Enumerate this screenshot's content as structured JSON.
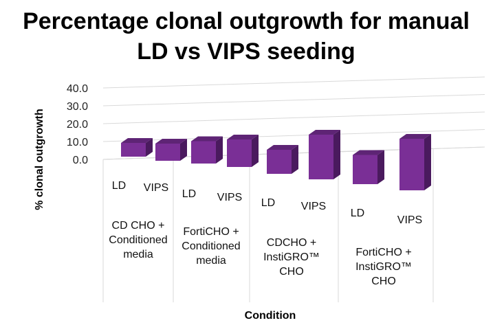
{
  "chart_data": {
    "type": "bar",
    "title": "Percentage clonal outgrowth for manual LD vs VIPS seeding",
    "title_lines": [
      "Percentage clonal outgrowth for manual",
      "LD vs VIPS seeding"
    ],
    "xlabel": "Condition",
    "ylabel": "% clonal outgrowth",
    "ylim": [
      0,
      40
    ],
    "yticks": [
      "40.0",
      "30.0",
      "20.0",
      "10.0",
      "0.0"
    ],
    "grid": true,
    "three_d": true,
    "groups": [
      {
        "lines": [
          "CD CHO +",
          "Conditioned",
          "media"
        ]
      },
      {
        "lines": [
          "FortiCHO +",
          "Conditioned",
          "media"
        ]
      },
      {
        "lines": [
          "CDCHO +",
          "InstiGRO™",
          "CHO"
        ]
      },
      {
        "lines": [
          "FortiCHO +",
          "InstiGRO™",
          "CHO"
        ]
      }
    ],
    "categories": [
      "LD",
      "VIPS",
      "LD",
      "VIPS",
      "LD",
      "VIPS",
      "LD",
      "VIPS"
    ],
    "values": [
      8,
      10,
      13,
      16,
      14,
      26,
      17,
      30
    ],
    "bar_color": "#7a2f96"
  }
}
